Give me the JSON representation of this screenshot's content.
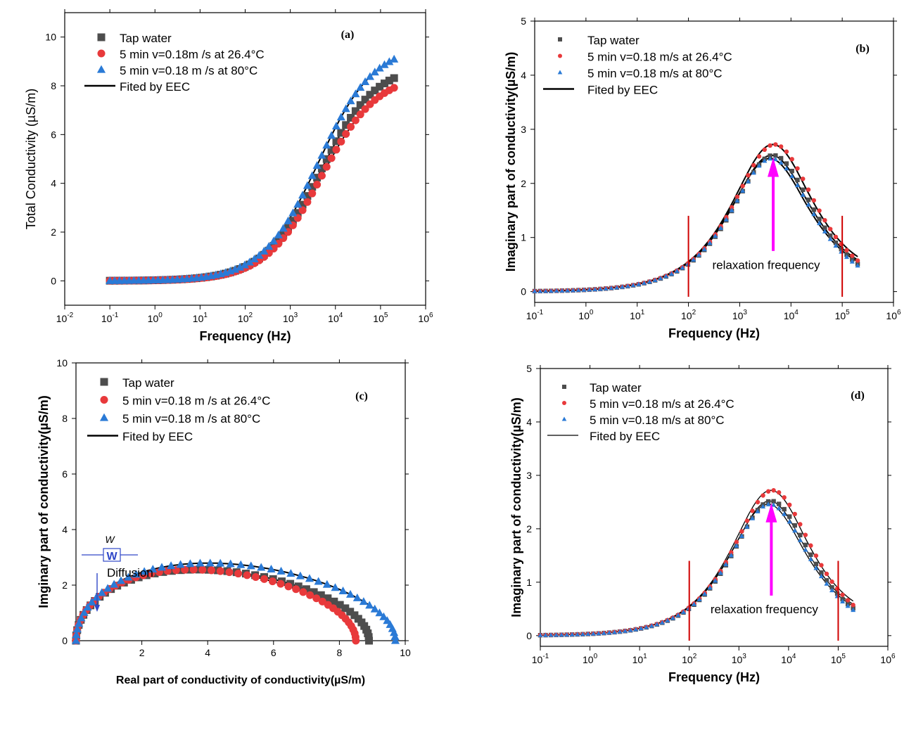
{
  "chart_data": [
    {
      "id": "a",
      "type": "scatter",
      "panel_label": "(a)",
      "xlabel": "Frequency (Hz)",
      "ylabel": "Total Conductivity (µS/m)",
      "xscale": "log",
      "xlim": [
        0.01,
        1000000
      ],
      "ylim": [
        -1,
        11
      ],
      "yticks": [
        0,
        2,
        4,
        6,
        8,
        10
      ],
      "xtick_exponents": [
        -2,
        -1,
        0,
        1,
        2,
        3,
        4,
        5,
        6
      ],
      "legend": [
        "Tap water",
        "5 min v=0.18m /s at 26.4°C",
        "5 min v=0.18 m /s at 80°C",
        "Fited by EEC"
      ],
      "legend_position": "top-left",
      "series_model": {
        "kind": "total",
        "points_from": 0.1,
        "points_to": 200000,
        "n_points": 60
      },
      "series": [
        {
          "name": "Tap water",
          "marker": "square",
          "color": "#4d4d4d",
          "sigma_inf": 8.9,
          "f_relax": 4500
        },
        {
          "name": "5 min v=0.18m /s at 26.4°C",
          "marker": "circle",
          "color": "#e8393b",
          "sigma_inf": 8.5,
          "f_relax": 4800
        },
        {
          "name": "5 min v=0.18 m /s at 80°C",
          "marker": "triangle",
          "color": "#2a7ad6",
          "sigma_inf": 9.7,
          "f_relax": 4200
        }
      ]
    },
    {
      "id": "b",
      "type": "scatter",
      "panel_label": "(b)",
      "xlabel": "Frequency (Hz)",
      "ylabel": "Imaginary part of conductivity(µS/m)",
      "xscale": "log",
      "xlim": [
        0.1,
        1000000
      ],
      "ylim": [
        -0.2,
        5
      ],
      "yticks": [
        0,
        1,
        2,
        3,
        4,
        5
      ],
      "xtick_exponents": [
        -1,
        0,
        1,
        2,
        3,
        4,
        5,
        6
      ],
      "legend": [
        "Tap water",
        "5  min v=0.18 m/s  at 26.4°C",
        "5 min v=0.18 m/s at  80°C",
        "Fited by EEC"
      ],
      "legend_position": "top-left",
      "annotation": "relaxation frequency",
      "relaxation_frequency": 4500,
      "markers_x": [
        100,
        100000
      ],
      "series_model": {
        "kind": "imaginary",
        "points_from": 0.1,
        "points_to": 200000,
        "n_points": 60
      },
      "series": [
        {
          "name": "Tap water",
          "marker": "square",
          "color": "#4d4d4d",
          "peak": 2.52,
          "f_relax": 4500
        },
        {
          "name": "5  min v=0.18 m/s  at 26.4°C",
          "marker": "circle",
          "color": "#e8393b",
          "peak": 2.72,
          "f_relax": 4800
        },
        {
          "name": "5 min v=0.18 m/s at  80°C",
          "marker": "triangle",
          "color": "#2a7ad6",
          "peak": 2.46,
          "f_relax": 4200
        }
      ]
    },
    {
      "id": "c",
      "type": "scatter",
      "panel_label": "(c)",
      "xlabel": "Real part of conductivity of conductivity(µS/m)",
      "ylabel": "Imginary part of conductivity(µS/m)",
      "xlim": [
        0,
        10
      ],
      "ylim": [
        0,
        10
      ],
      "xticks": [
        2,
        4,
        6,
        8,
        10
      ],
      "yticks": [
        0,
        2,
        4,
        6,
        8,
        10
      ],
      "legend": [
        "Tap water",
        "5 min v=0.18 m /s at 26.4°C",
        "5 min v=0.18 m /s at 80°C",
        "Fited by EEC"
      ],
      "legend_position": "top-left",
      "annotation": "Diffusion",
      "element_symbol": "W",
      "series_model": {
        "kind": "nyquist",
        "n_points": 50
      },
      "series": [
        {
          "name": "Tap water",
          "marker": "square",
          "color": "#4d4d4d",
          "sigma_inf": 8.9,
          "peak": 2.52
        },
        {
          "name": "5 min v=0.18 m /s at 26.4°C",
          "marker": "circle",
          "color": "#e8393b",
          "sigma_inf": 8.5,
          "peak": 2.52
        },
        {
          "name": "5 min v=0.18 m /s at 80°C",
          "marker": "triangle",
          "color": "#2a7ad6",
          "sigma_inf": 9.7,
          "peak": 2.75
        }
      ]
    },
    {
      "id": "d",
      "type": "scatter",
      "panel_label": "(d)",
      "xlabel": "Frequency (Hz)",
      "ylabel": "Imaginary part of conductivity(µS/m)",
      "xscale": "log",
      "xlim": [
        0.1,
        1000000
      ],
      "ylim": [
        -0.2,
        5
      ],
      "yticks": [
        0,
        1,
        2,
        3,
        4,
        5
      ],
      "xtick_exponents": [
        -1,
        0,
        1,
        2,
        3,
        4,
        5,
        6
      ],
      "legend": [
        "Tap water",
        "5  min v=0.18 m/s  at 26.4°C",
        "5 min v=0.18 m/s at  80°C",
        "Fited by EEC"
      ],
      "legend_position": "top-left",
      "annotation": "relaxation frequency",
      "relaxation_frequency": 4500,
      "markers_x": [
        100,
        100000
      ],
      "series_model": {
        "kind": "imaginary",
        "points_from": 0.1,
        "points_to": 200000,
        "n_points": 60
      },
      "series": [
        {
          "name": "Tap water",
          "marker": "square",
          "color": "#4d4d4d",
          "peak": 2.52,
          "f_relax": 4500
        },
        {
          "name": "5  min v=0.18 m/s  at 26.4°C",
          "marker": "circle",
          "color": "#e8393b",
          "peak": 2.72,
          "f_relax": 4800
        },
        {
          "name": "5 min v=0.18 m/s at  80°C",
          "marker": "triangle",
          "color": "#2a7ad6",
          "peak": 2.46,
          "f_relax": 4200
        }
      ]
    }
  ]
}
